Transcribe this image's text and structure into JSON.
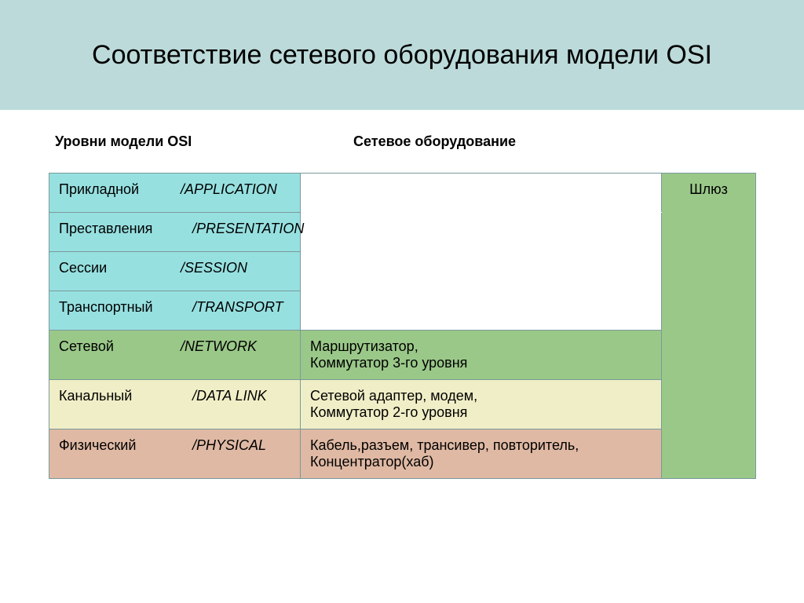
{
  "colors": {
    "title_bg": "#bcdada",
    "cyan": "#97e0e0",
    "green": "#9ac889",
    "yellow": "#f0eec6",
    "peach": "#dfb9a4",
    "gateway_bg": "#9ac889",
    "border": "#7a9a9a",
    "text": "#000000"
  },
  "title": "Соответствие сетевого оборудования модели OSI",
  "subheaders": {
    "left": "Уровни модели OSI",
    "right": "Сетевое оборудование"
  },
  "gateway_label": "Шлюз",
  "layers": [
    {
      "ru": "Прикладной",
      "en": "/APPLICATION",
      "color_key": "cyan",
      "ru_width": 155,
      "equipment": ""
    },
    {
      "ru": "Преставления",
      "en": "/PRESENTATION",
      "color_key": "cyan",
      "ru_width": 170,
      "equipment": ""
    },
    {
      "ru": "Сессии",
      "en": "/SESSION",
      "color_key": "cyan",
      "ru_width": 155,
      "equipment": ""
    },
    {
      "ru": "Транспортный",
      "en": "/TRANSPORT",
      "color_key": "cyan",
      "ru_width": 170,
      "equipment": ""
    },
    {
      "ru": "Сетевой",
      "en": "/NETWORK",
      "color_key": "green",
      "ru_width": 155,
      "equipment": "Маршрутизатор,\nКоммутатор 3-го уровня"
    },
    {
      "ru": "Канальный",
      "en": "/DATA LINK",
      "color_key": "yellow",
      "ru_width": 170,
      "equipment": "Сетевой адаптер, модем,\nКоммутатор 2-го уровня"
    },
    {
      "ru": "Физический",
      "en": "/PHYSICAL",
      "color_key": "peach",
      "ru_width": 170,
      "equipment": "Кабель,разъем, трансивер, повторитель,\n         Концентратор(хаб)"
    }
  ]
}
